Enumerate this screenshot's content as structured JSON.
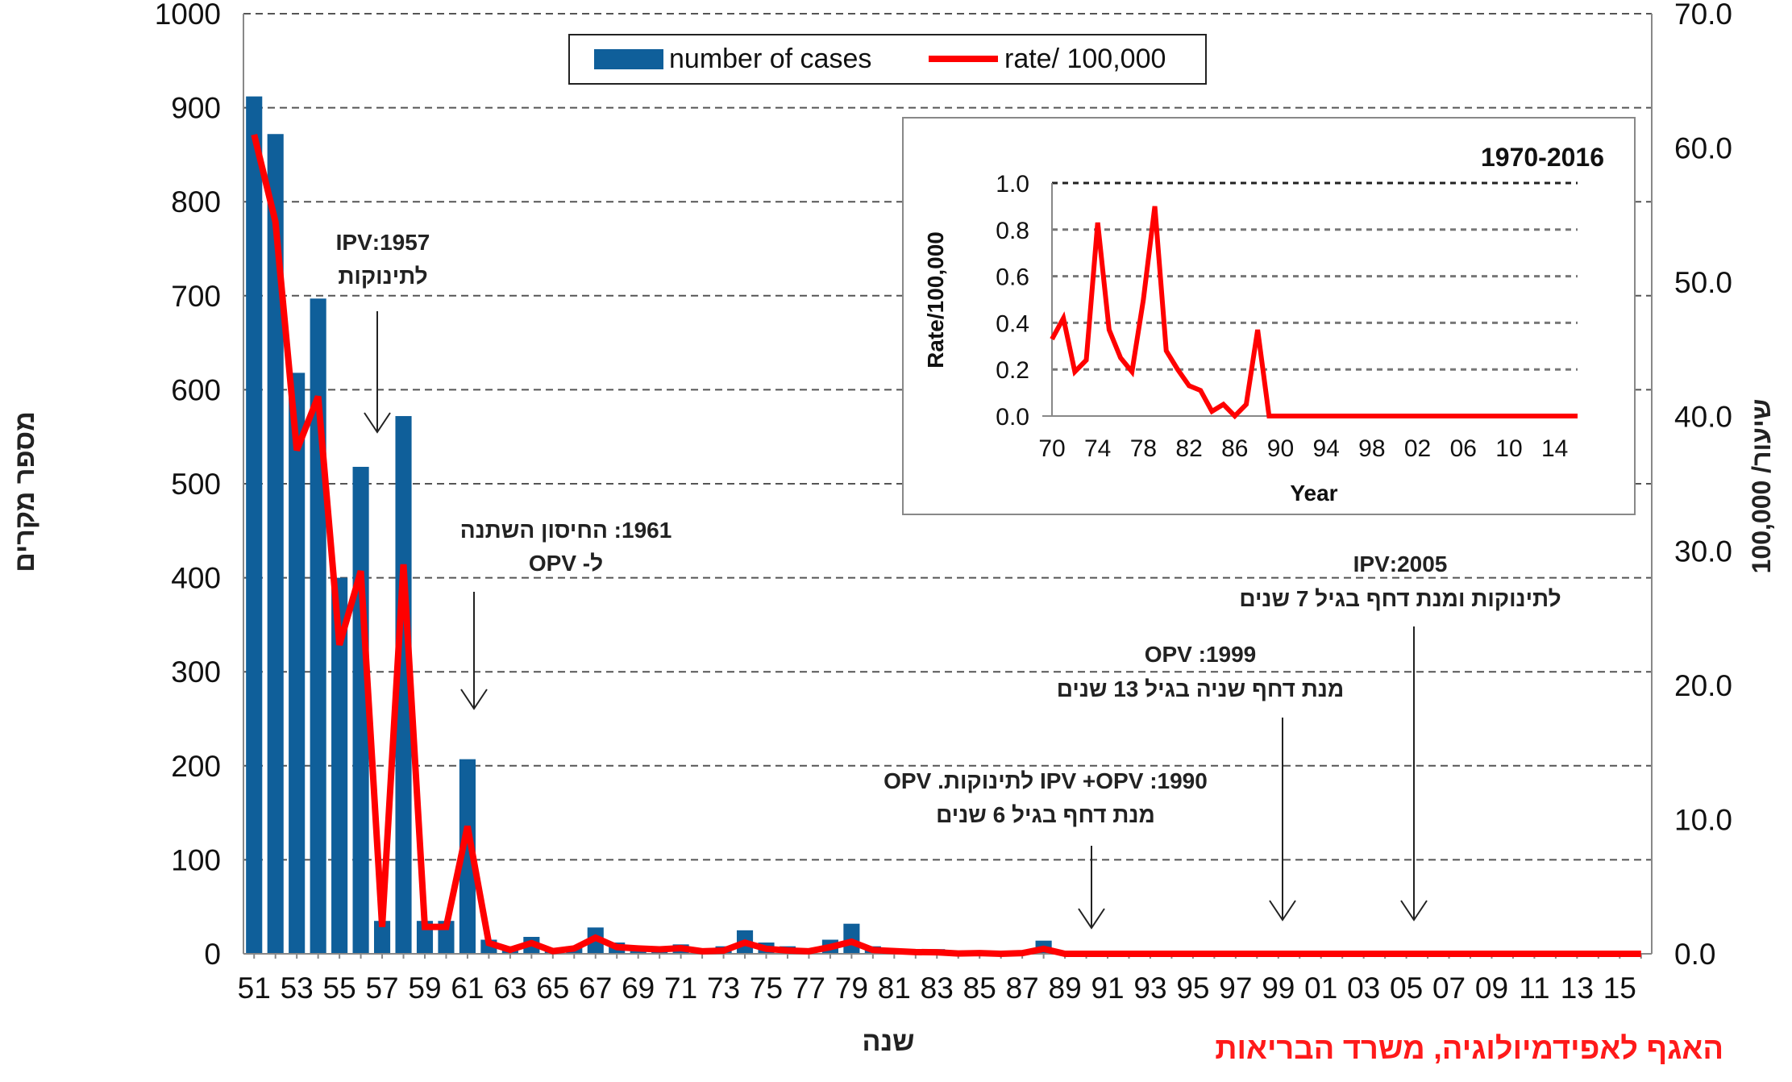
{
  "chart_data": [
    {
      "type": "bar+line",
      "xlabel": "שנה",
      "ylabel": "מספר מקרים",
      "y2label": "שיעור/ 100,000",
      "ylim": [
        0,
        1000
      ],
      "y2lim": [
        0,
        70
      ],
      "yticks": [
        "0",
        "100",
        "200",
        "300",
        "400",
        "500",
        "600",
        "700",
        "800",
        "900",
        "1000"
      ],
      "y2ticks": [
        "0.0",
        "10.0",
        "20.0",
        "30.0",
        "40.0",
        "50.0",
        "60.0",
        "70.0"
      ],
      "grid": true,
      "legend_position": "top-center",
      "categories": [
        "51",
        "52",
        "53",
        "54",
        "55",
        "56",
        "57",
        "58",
        "59",
        "60",
        "61",
        "62",
        "63",
        "64",
        "65",
        "66",
        "67",
        "68",
        "69",
        "70",
        "71",
        "72",
        "73",
        "74",
        "75",
        "76",
        "77",
        "78",
        "79",
        "80",
        "81",
        "82",
        "83",
        "84",
        "85",
        "86",
        "87",
        "88",
        "89",
        "90",
        "91",
        "92",
        "93",
        "94",
        "95",
        "96",
        "97",
        "98",
        "99",
        "00",
        "01",
        "02",
        "03",
        "04",
        "05",
        "06",
        "07",
        "08",
        "09",
        "10",
        "11",
        "12",
        "13",
        "14",
        "15",
        "16"
      ],
      "series": [
        {
          "name": "number of cases",
          "type": "bar",
          "color": "#0f5f9a",
          "values": [
            912,
            872,
            618,
            697,
            400,
            518,
            35,
            572,
            35,
            35,
            207,
            15,
            8,
            18,
            5,
            8,
            28,
            12,
            8,
            8,
            10,
            5,
            8,
            25,
            12,
            8,
            5,
            15,
            32,
            8,
            3,
            5,
            5,
            2,
            2,
            1,
            3,
            14,
            0,
            0,
            0,
            0,
            0,
            0,
            0,
            0,
            0,
            0,
            0,
            0,
            0,
            0,
            0,
            0,
            0,
            0,
            0,
            0,
            0,
            0,
            0,
            0,
            0,
            0,
            0,
            0
          ]
        },
        {
          "name": "rate/ 100,000",
          "type": "line",
          "axis": "right",
          "color": "#ff0000",
          "values": [
            61,
            54.5,
            37.5,
            41.5,
            23,
            28.5,
            2,
            29,
            2,
            2,
            9.5,
            0.8,
            0.3,
            0.8,
            0.2,
            0.4,
            1.2,
            0.5,
            0.4,
            0.33,
            0.42,
            0.19,
            0.24,
            0.83,
            0.37,
            0.25,
            0.19,
            0.5,
            0.9,
            0.28,
            0.2,
            0.13,
            0.11,
            0.02,
            0.05,
            0.0,
            0.05,
            0.37,
            0,
            0,
            0,
            0,
            0,
            0,
            0,
            0,
            0,
            0,
            0,
            0,
            0,
            0,
            0,
            0,
            0,
            0,
            0,
            0,
            0,
            0,
            0,
            0,
            0,
            0,
            0,
            0
          ]
        }
      ],
      "annotations": [
        {
          "lines": [
            "1957:IPV",
            "לתינוקות"
          ]
        },
        {
          "lines": [
            "1961: החיסון השתנה",
            "ל- OPV"
          ]
        },
        {
          "lines": [
            "1990:  IPV +OPV  לתינוקות. OPV",
            "מנת דחף בגיל 6 שנים"
          ]
        },
        {
          "lines": [
            "1999: OPV",
            "מנת דחף שניה בגיל 13 שנים"
          ]
        },
        {
          "lines": [
            "2005:IPV",
            "לתינוקות ומנת דחף בגיל 7 שנים"
          ]
        }
      ]
    },
    {
      "type": "line",
      "title": "1970-2016",
      "xlabel": "Year",
      "ylabel": "Rate/100,000",
      "ylim": [
        0,
        1.0
      ],
      "yticks": [
        "0.0",
        "0.2",
        "0.4",
        "0.6",
        "0.8",
        "1.0"
      ],
      "xticks": [
        "70",
        "74",
        "78",
        "82",
        "86",
        "90",
        "94",
        "98",
        "02",
        "06",
        "10",
        "14"
      ],
      "grid": true,
      "color": "#ff0000",
      "start_year": 1970,
      "values": [
        0.33,
        0.42,
        0.19,
        0.24,
        0.83,
        0.37,
        0.25,
        0.19,
        0.5,
        0.9,
        0.28,
        0.2,
        0.13,
        0.11,
        0.02,
        0.05,
        0.0,
        0.05,
        0.37,
        0,
        0,
        0,
        0,
        0,
        0,
        0,
        0,
        0,
        0,
        0,
        0,
        0,
        0,
        0,
        0,
        0,
        0,
        0,
        0,
        0,
        0,
        0,
        0,
        0,
        0,
        0,
        0
      ]
    }
  ],
  "source": "האגף לאפידמיולוגיה, משרד הבריאות"
}
